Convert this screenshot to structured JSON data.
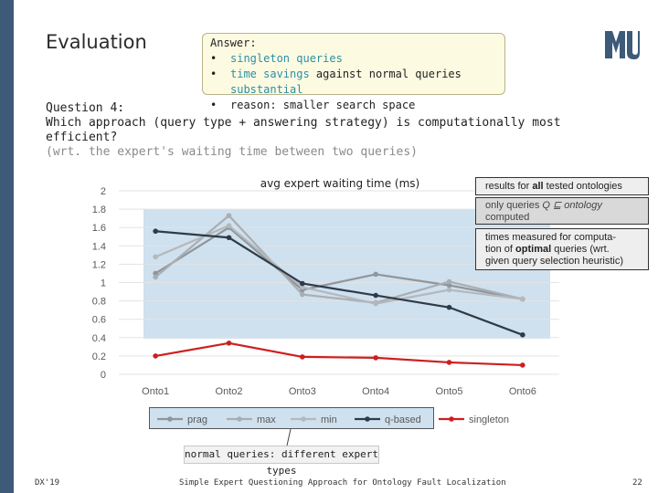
{
  "slide": {
    "title": "Evaluation",
    "answer": {
      "heading": "Answer:",
      "items": [
        {
          "bullet": "•",
          "parts": [
            {
              "text": "singleton queries",
              "teal": true
            }
          ]
        },
        {
          "bullet": "•",
          "parts": [
            {
              "text": "time savings",
              "teal": true
            },
            {
              "text": " against normal queries ",
              "teal": false
            },
            {
              "text": "substantial",
              "teal": true
            }
          ]
        },
        {
          "bullet": "•",
          "parts": [
            {
              "text": "reason: smaller search space",
              "teal": false
            }
          ]
        }
      ]
    },
    "question": {
      "label": "Question 4:",
      "text": "Which approach (query type + answering strategy) is computationally most efficient?",
      "note": "(wrt. the expert's waiting time between two queries)"
    },
    "side_notes": {
      "box1_pre": "results for ",
      "box1_bold": "all",
      "box1_post": " tested ontologies",
      "box2_pre": "only queries ",
      "box2_math": "Q ⊑ ontology",
      "box2_post": "computed",
      "box3_line1": "times measured for computa-",
      "box3_line2_pre": "tion of ",
      "box3_bold": "optimal",
      "box3_line2_post": " queries (wrt.",
      "box3_line3": "given query selection heuristic)"
    },
    "annotation": "normal queries: different expert types",
    "footer": {
      "left": "DX'19",
      "center": "Simple Expert Questioning Approach for Ontology Fault Localization",
      "page": "22"
    },
    "colors": {
      "sidebar": "#3d5a78",
      "teal": "#2b8fa6",
      "highlight": "#cfe0ee"
    }
  },
  "chart_data": {
    "type": "line",
    "title": "avg expert waiting time (ms)",
    "categories": [
      "Onto1",
      "Onto2",
      "Onto3",
      "Onto4",
      "Onto5",
      "Onto6"
    ],
    "ylim": [
      0,
      2
    ],
    "yticks": [
      0,
      0.2,
      0.4,
      0.6,
      0.8,
      1,
      1.2,
      1.4,
      1.6,
      1.8,
      2
    ],
    "ytick_labels": [
      "0",
      "0.2",
      "0.4",
      "0.6",
      "0.8",
      "1",
      "1.2",
      "1.4",
      "1.6",
      "1.8",
      "2"
    ],
    "series": [
      {
        "name": "prag",
        "color": "#8f959b",
        "values": [
          1.1,
          1.6,
          0.92,
          1.09,
          0.97,
          0.82
        ]
      },
      {
        "name": "max",
        "color": "#a8aeb3",
        "values": [
          1.06,
          1.73,
          0.87,
          0.78,
          1.01,
          0.82
        ]
      },
      {
        "name": "min",
        "color": "#b3b8bc",
        "values": [
          1.28,
          1.62,
          0.95,
          0.77,
          0.92,
          0.82
        ]
      },
      {
        "name": "q-based",
        "color": "#2e3b48",
        "values": [
          1.56,
          1.49,
          0.99,
          0.86,
          0.73,
          0.43
        ]
      },
      {
        "name": "singleton",
        "color": "#cc1f1f",
        "values": [
          0.2,
          0.34,
          0.19,
          0.18,
          0.13,
          0.1
        ]
      }
    ],
    "legend_position": "bottom",
    "highlight_region": {
      "y_from": 0.4,
      "y_to": 1.8,
      "label": "normal queries"
    }
  }
}
